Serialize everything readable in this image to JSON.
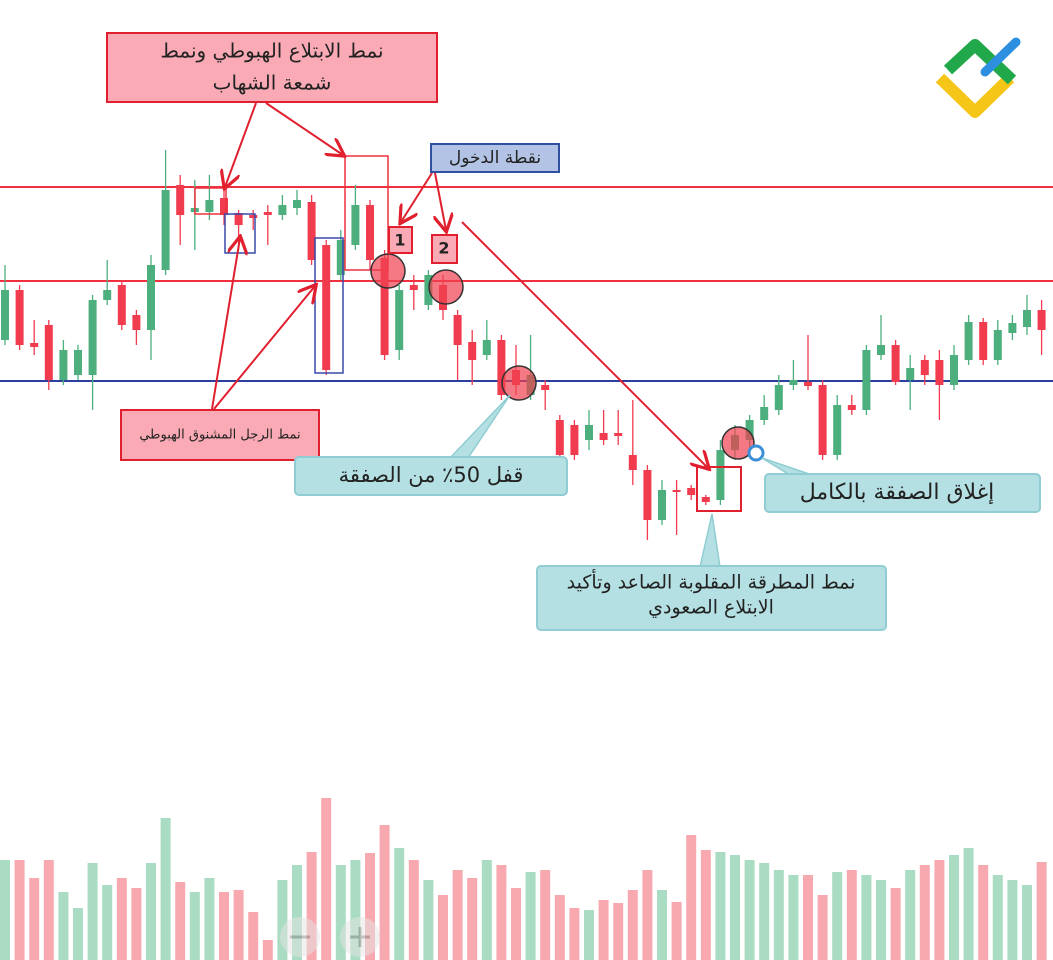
{
  "chart_data": {
    "type": "candlestick",
    "open": [
      260,
      310,
      257,
      275,
      220,
      225,
      225,
      300,
      315,
      285,
      270,
      330,
      415,
      388,
      388,
      402,
      387,
      385,
      388,
      385,
      392,
      398,
      355,
      325,
      355,
      395,
      342,
      250,
      315,
      295,
      315,
      285,
      258,
      245,
      260,
      230,
      205,
      215,
      180,
      175,
      160,
      167,
      167,
      145,
      130,
      80,
      110,
      112,
      103,
      100,
      150,
      160,
      180,
      190,
      215,
      218,
      215,
      145,
      195,
      190,
      245,
      255,
      220,
      240,
      240,
      215,
      240,
      278,
      240,
      267,
      273,
      290
    ],
    "high": [
      335,
      315,
      280,
      280,
      260,
      255,
      305,
      340,
      320,
      290,
      345,
      450,
      425,
      420,
      425,
      410,
      390,
      390,
      395,
      405,
      410,
      405,
      360,
      370,
      415,
      400,
      350,
      315,
      325,
      330,
      325,
      290,
      270,
      280,
      265,
      255,
      265,
      220,
      185,
      180,
      190,
      190,
      190,
      200,
      135,
      120,
      120,
      115,
      105,
      160,
      175,
      185,
      205,
      225,
      240,
      265,
      220,
      205,
      205,
      255,
      285,
      260,
      245,
      245,
      250,
      255,
      285,
      282,
      280,
      285,
      305,
      300
    ],
    "low": [
      255,
      250,
      245,
      210,
      215,
      220,
      190,
      295,
      270,
      255,
      240,
      325,
      355,
      350,
      380,
      375,
      350,
      370,
      355,
      380,
      385,
      335,
      225,
      320,
      350,
      330,
      240,
      240,
      290,
      290,
      280,
      220,
      215,
      240,
      200,
      205,
      200,
      190,
      140,
      140,
      150,
      155,
      155,
      115,
      60,
      75,
      65,
      100,
      95,
      95,
      140,
      150,
      175,
      185,
      210,
      210,
      140,
      140,
      185,
      185,
      240,
      215,
      190,
      215,
      180,
      210,
      235,
      235,
      235,
      260,
      265,
      245
    ],
    "close": [
      310,
      255,
      253,
      220,
      250,
      250,
      300,
      310,
      275,
      270,
      335,
      410,
      385,
      392,
      400,
      385,
      375,
      382,
      385,
      395,
      400,
      340,
      230,
      360,
      395,
      340,
      245,
      310,
      310,
      325,
      290,
      255,
      240,
      260,
      205,
      215,
      225,
      210,
      145,
      145,
      175,
      160,
      164,
      130,
      80,
      110,
      108,
      105,
      98,
      150,
      165,
      180,
      193,
      215,
      220,
      214,
      145,
      195,
      190,
      250,
      255,
      218,
      232,
      225,
      215,
      245,
      278,
      240,
      270,
      277,
      290,
      270
    ],
    "volume": [
      100,
      100,
      82,
      100,
      68,
      52,
      97,
      75,
      82,
      72,
      97,
      142,
      78,
      68,
      82,
      68,
      70,
      48,
      20,
      80,
      95,
      108,
      162,
      95,
      100,
      107,
      135,
      112,
      100,
      80,
      65,
      90,
      82,
      100,
      95,
      72,
      88,
      90,
      65,
      52,
      50,
      60,
      57,
      70,
      90,
      70,
      58,
      125,
      110,
      108,
      105,
      100,
      97,
      90,
      85,
      85,
      65,
      88,
      90,
      85,
      80,
      72,
      90,
      95,
      100,
      105,
      112,
      95,
      85,
      80,
      75,
      98
    ],
    "ylim": [
      0,
      600
    ],
    "y2lim": [
      0,
      960
    ],
    "up_color": "#4caf7d",
    "down_color": "#f03c4e",
    "volume_up_color": "#a9dcc2",
    "volume_down_color": "#f8a9b0",
    "levels": [
      {
        "value": 413,
        "color": "#f0303e"
      },
      {
        "value": 319,
        "color": "#f0303e"
      },
      {
        "value": 219,
        "color": "#2b3f9e"
      }
    ],
    "annotations": [
      {
        "lines": [
          "نمط الابتلاع الهبوطي ونمط",
          "شمعة الشهاب"
        ]
      },
      {
        "lines": [
          "نقطة الدخول"
        ]
      },
      {
        "lines": [
          "نمط الرجل المشنوق الهبوطي"
        ]
      },
      {
        "lines": [
          "قفل 50٪ من الصفقة"
        ]
      },
      {
        "lines": [
          "إغلاق الصفقة بالكامل"
        ]
      },
      {
        "lines": [
          "نمط المطرقة المقلوبة الصاعد وتأكيد",
          "الابتلاع الصعودي"
        ]
      }
    ],
    "markers": [
      "1",
      "2"
    ]
  }
}
